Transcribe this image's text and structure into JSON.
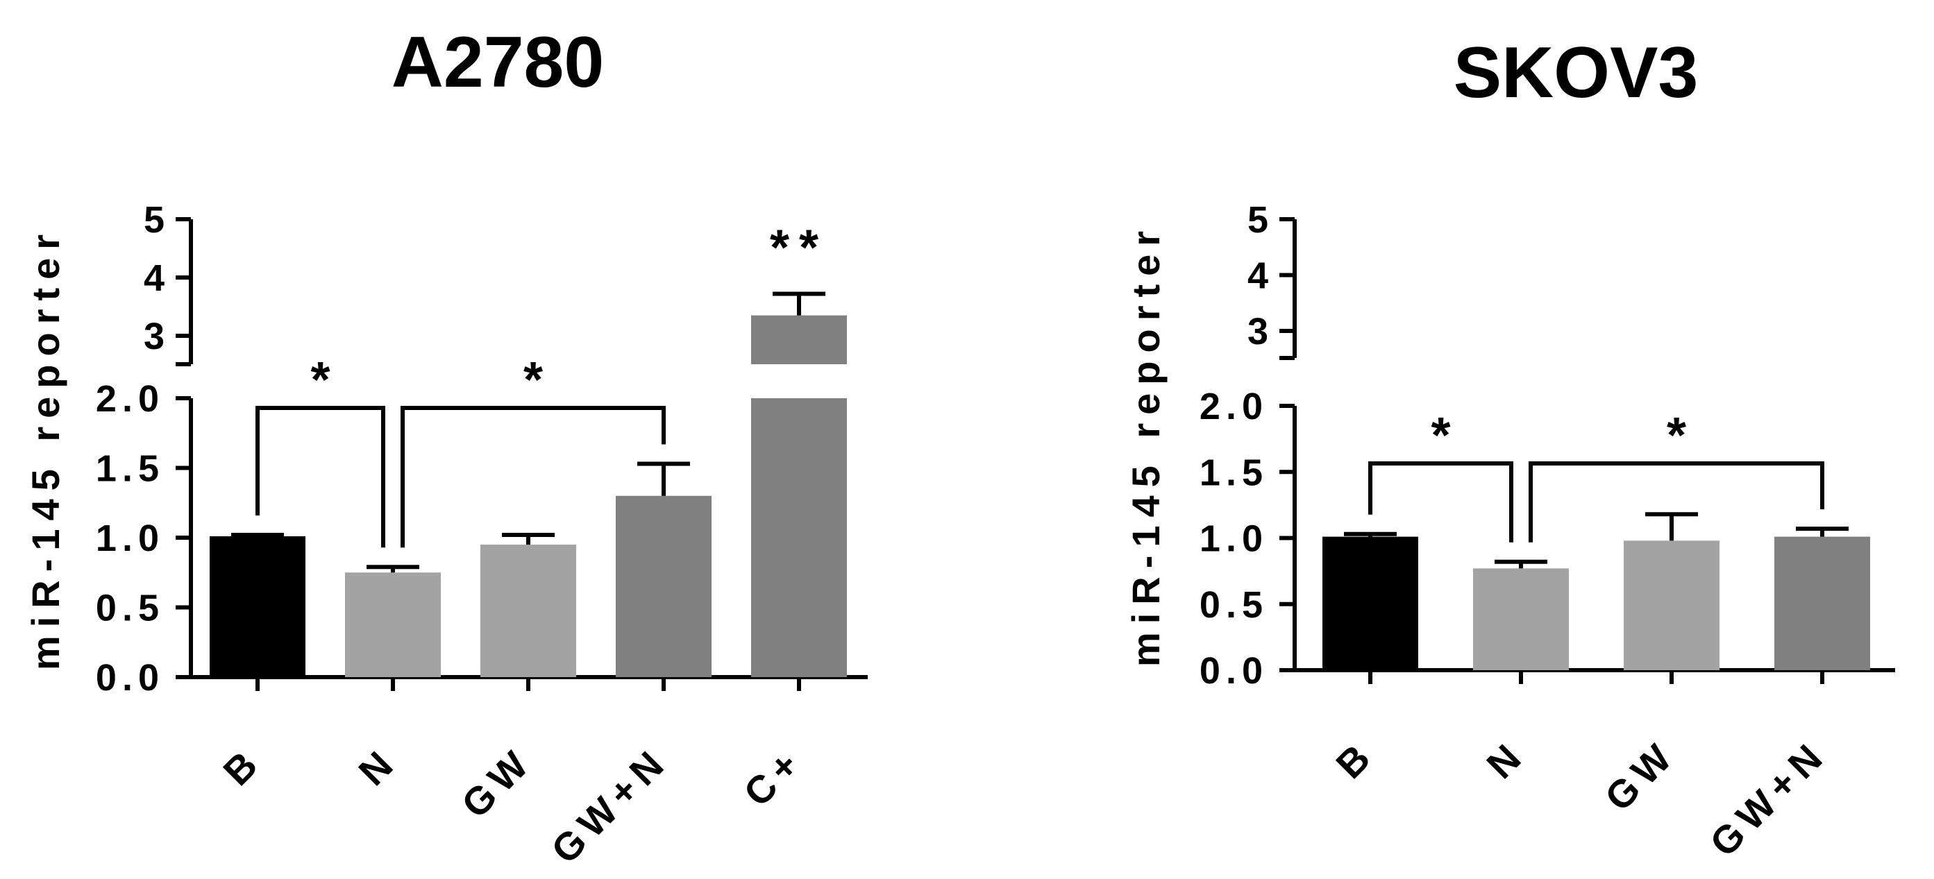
{
  "chart_data": [
    {
      "type": "bar",
      "title": "A2780",
      "ylabel": "miR-145 reporter",
      "xlabel": "",
      "categories": [
        "B",
        "N",
        "GW",
        "GW+N",
        "C+"
      ],
      "values": [
        1.01,
        0.75,
        0.95,
        1.3,
        3.35
      ],
      "errors": [
        0.01,
        0.04,
        0.07,
        0.23,
        0.37
      ],
      "colors": [
        "#000000",
        "#a3a3a3",
        "#a3a3a3",
        "#808080",
        "#808080"
      ],
      "ylim_lower": [
        0,
        2.0
      ],
      "ylim_upper": [
        2.5,
        5
      ],
      "y_ticks_lower": [
        "0.0",
        "0.5",
        "1.0",
        "1.5",
        "2.0"
      ],
      "y_ticks_upper": [
        "3",
        "4",
        "5"
      ],
      "broken_axis": true,
      "significance": [
        {
          "from": "B",
          "to": "N",
          "label": "*"
        },
        {
          "from": "N",
          "to": "GW+N",
          "label": "*"
        },
        {
          "over": "C+",
          "label": "**"
        }
      ]
    },
    {
      "type": "bar",
      "title": "SKOV3",
      "ylabel": "miR-145 reporter",
      "xlabel": "",
      "categories": [
        "B",
        "N",
        "GW",
        "GW+N"
      ],
      "values": [
        1.01,
        0.77,
        0.98,
        1.01
      ],
      "errors": [
        0.02,
        0.05,
        0.2,
        0.06
      ],
      "colors": [
        "#000000",
        "#a3a3a3",
        "#a3a3a3",
        "#808080"
      ],
      "ylim_lower": [
        0,
        2.0
      ],
      "ylim_upper": [
        2.5,
        5
      ],
      "y_ticks_lower": [
        "0.0",
        "0.5",
        "1.0",
        "1.5",
        "2.0"
      ],
      "y_ticks_upper": [
        "3",
        "4",
        "5"
      ],
      "broken_axis": true,
      "significance": [
        {
          "from": "B",
          "to": "N",
          "label": "*"
        },
        {
          "from": "N",
          "to": "GW+N",
          "label": "*"
        }
      ]
    }
  ]
}
